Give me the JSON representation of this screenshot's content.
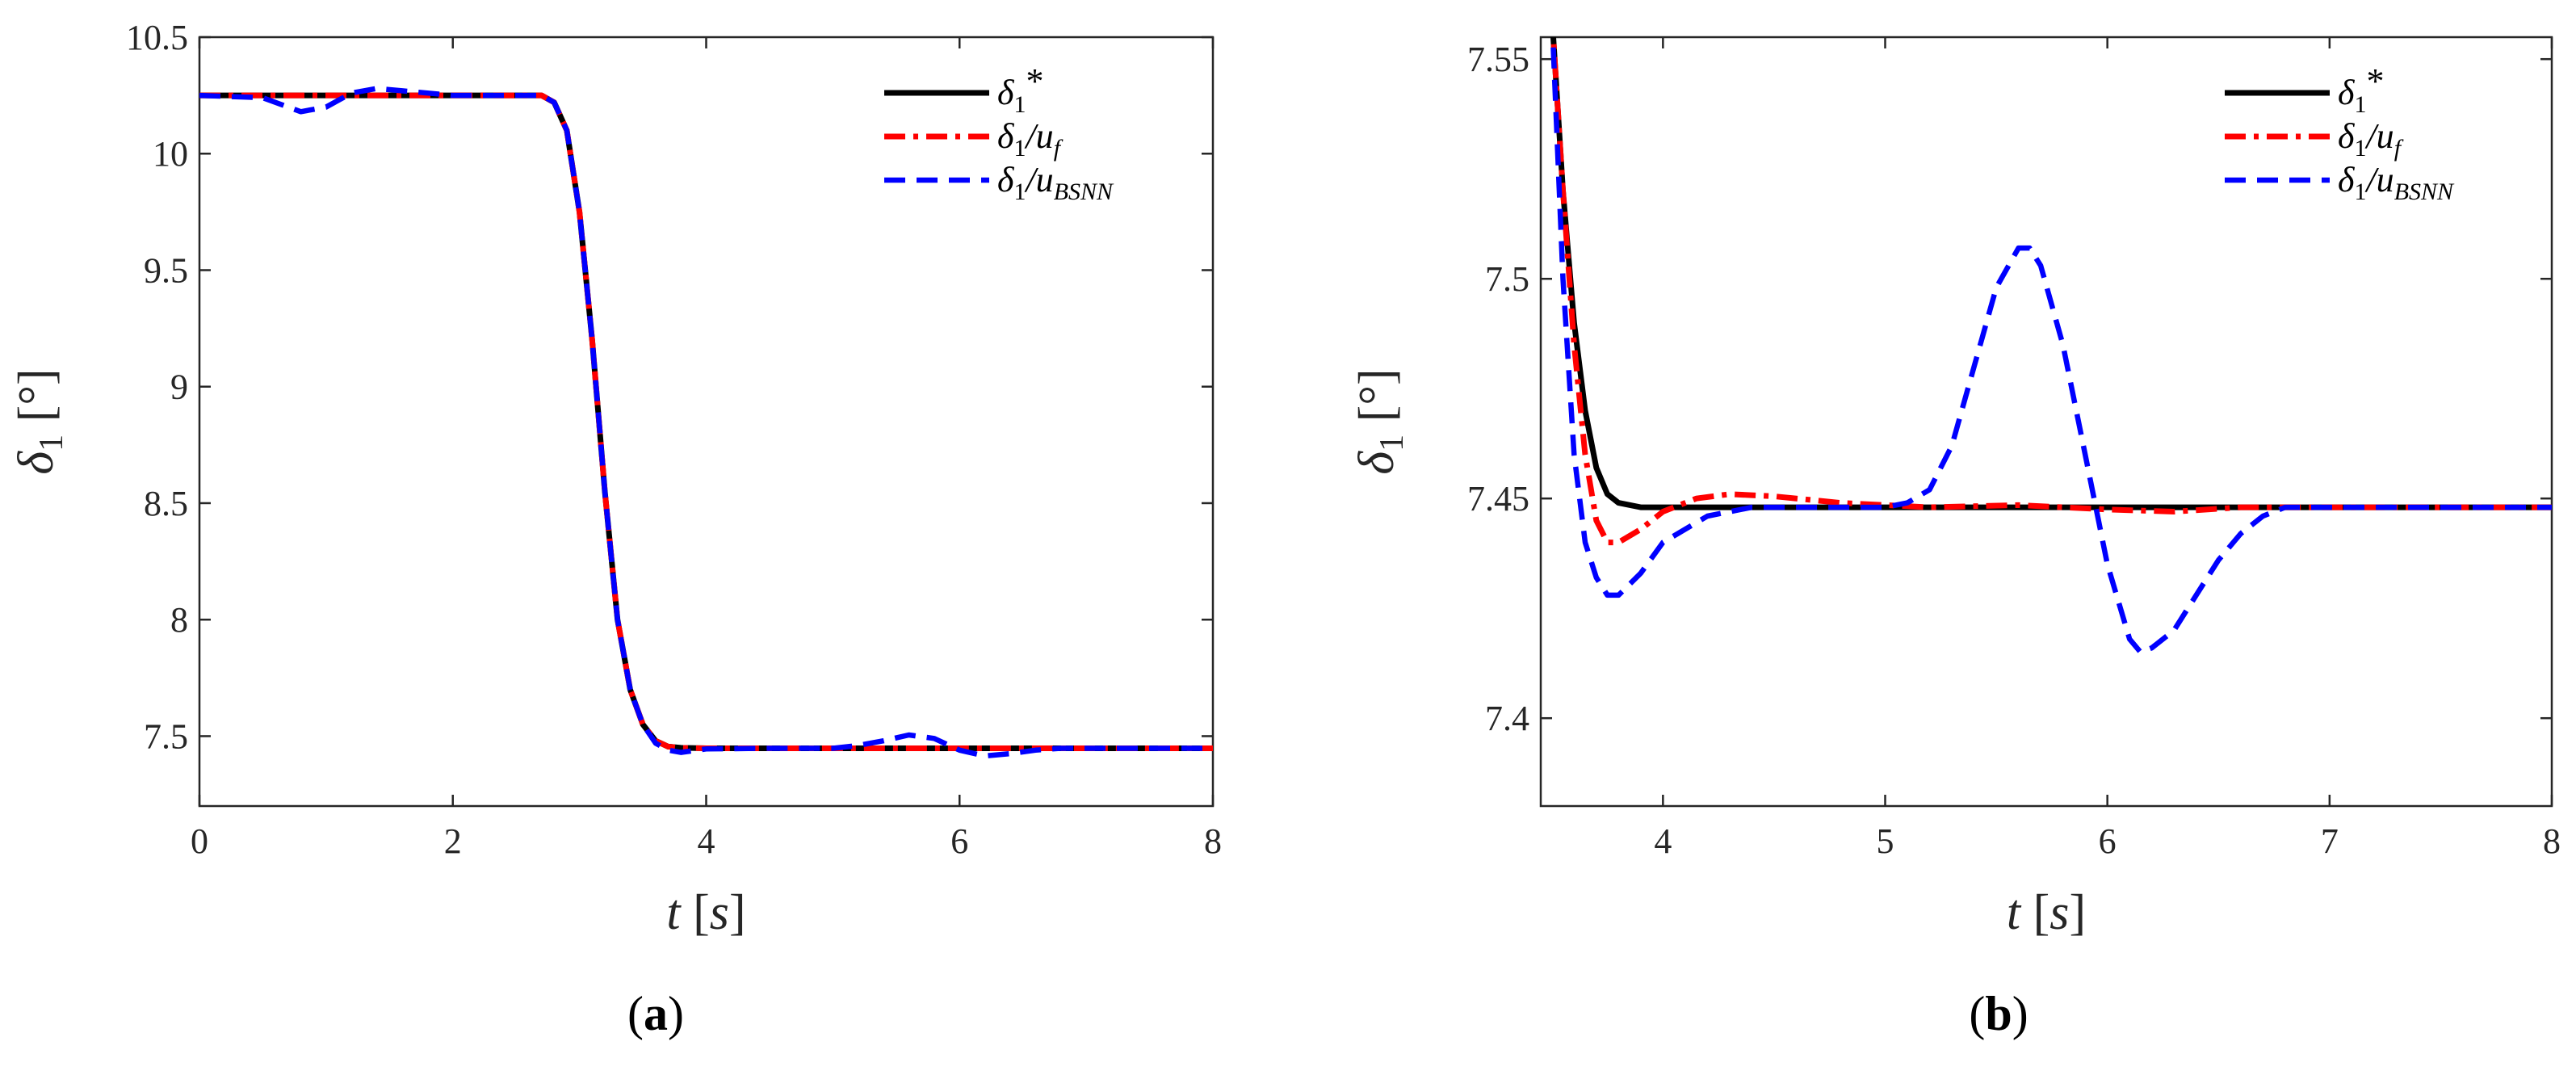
{
  "chart_data": [
    {
      "type": "line",
      "panel_label": "a",
      "xlabel": "t",
      "xunit": "s",
      "ylabel": "δ",
      "ylabel_sub": "1",
      "yunit": "°",
      "xlim": [
        0,
        8
      ],
      "ylim": [
        7.2,
        10.5
      ],
      "xticks": [
        "0",
        "2",
        "4",
        "6",
        "8"
      ],
      "yticks": [
        "7.5",
        "8",
        "8.5",
        "9",
        "9.5",
        "10",
        "10.5"
      ],
      "legend": [
        "δ1*",
        "δ1/uf",
        "δ1/uBSNN"
      ],
      "series": [
        {
          "name": "δ1*",
          "color": "#000000",
          "style": "solid",
          "x": [
            0,
            2.7,
            2.8,
            2.9,
            3.0,
            3.1,
            3.2,
            3.3,
            3.4,
            3.5,
            3.6,
            3.7,
            3.8,
            4.0,
            8
          ],
          "y": [
            10.25,
            10.25,
            10.22,
            10.1,
            9.75,
            9.2,
            8.55,
            8.0,
            7.7,
            7.55,
            7.48,
            7.455,
            7.45,
            7.448,
            7.448
          ]
        },
        {
          "name": "δ1/uf",
          "color": "#ff0000",
          "style": "dashdot",
          "x": [
            0,
            2.7,
            2.8,
            2.9,
            3.0,
            3.1,
            3.2,
            3.3,
            3.4,
            3.5,
            3.6,
            3.7,
            3.8,
            4.0,
            8
          ],
          "y": [
            10.25,
            10.25,
            10.22,
            10.1,
            9.75,
            9.2,
            8.55,
            8.0,
            7.7,
            7.55,
            7.48,
            7.455,
            7.45,
            7.448,
            7.448
          ]
        },
        {
          "name": "δ1/uBSNN",
          "color": "#0000ff",
          "style": "dashed",
          "x": [
            0,
            0.5,
            0.8,
            1.0,
            1.2,
            1.4,
            1.6,
            1.8,
            2.0,
            2.7,
            2.8,
            2.9,
            3.0,
            3.1,
            3.2,
            3.3,
            3.4,
            3.5,
            3.6,
            3.7,
            3.8,
            4.0,
            4.5,
            5.0,
            5.2,
            5.4,
            5.6,
            5.8,
            6.0,
            6.2,
            6.4,
            6.6,
            6.8,
            7.0,
            8
          ],
          "y": [
            10.25,
            10.24,
            10.18,
            10.2,
            10.26,
            10.28,
            10.27,
            10.26,
            10.25,
            10.25,
            10.22,
            10.1,
            9.75,
            9.2,
            8.55,
            8.0,
            7.7,
            7.55,
            7.47,
            7.44,
            7.43,
            7.445,
            7.448,
            7.448,
            7.46,
            7.48,
            7.505,
            7.49,
            7.44,
            7.415,
            7.425,
            7.44,
            7.448,
            7.448,
            7.448
          ]
        }
      ]
    },
    {
      "type": "line",
      "panel_label": "b",
      "xlabel": "t",
      "xunit": "s",
      "ylabel": "δ",
      "ylabel_sub": "1",
      "yunit": "°",
      "xlim": [
        3.45,
        8
      ],
      "ylim": [
        7.38,
        7.555
      ],
      "xticks": [
        "4",
        "5",
        "6",
        "7",
        "8"
      ],
      "yticks": [
        "7.4",
        "7.45",
        "7.5",
        "7.55"
      ],
      "legend": [
        "δ1*",
        "δ1/uf",
        "δ1/uBSNN"
      ],
      "series": [
        {
          "name": "δ1*",
          "color": "#000000",
          "style": "solid",
          "x": [
            3.5,
            3.55,
            3.6,
            3.65,
            3.7,
            3.75,
            3.8,
            3.9,
            4.0,
            5.0,
            6.0,
            7.0,
            8.0
          ],
          "y": [
            7.56,
            7.52,
            7.49,
            7.47,
            7.457,
            7.451,
            7.449,
            7.448,
            7.448,
            7.448,
            7.448,
            7.448,
            7.448
          ]
        },
        {
          "name": "δ1/uf",
          "color": "#ff0000",
          "style": "dashdot",
          "x": [
            3.5,
            3.55,
            3.6,
            3.65,
            3.7,
            3.75,
            3.8,
            3.9,
            4.0,
            4.15,
            4.3,
            4.5,
            4.8,
            5.2,
            5.6,
            6.0,
            6.3,
            6.6,
            7.0,
            8.0
          ],
          "y": [
            7.56,
            7.52,
            7.485,
            7.46,
            7.445,
            7.44,
            7.44,
            7.443,
            7.447,
            7.45,
            7.451,
            7.4505,
            7.449,
            7.448,
            7.4485,
            7.4475,
            7.447,
            7.448,
            7.448,
            7.448
          ]
        },
        {
          "name": "δ1/uBSNN",
          "color": "#0000ff",
          "style": "dashed",
          "x": [
            3.5,
            3.55,
            3.6,
            3.65,
            3.7,
            3.75,
            3.8,
            3.9,
            4.0,
            4.2,
            4.4,
            4.6,
            4.8,
            5.0,
            5.1,
            5.2,
            5.3,
            5.4,
            5.5,
            5.6,
            5.65,
            5.7,
            5.8,
            5.9,
            6.0,
            6.1,
            6.15,
            6.2,
            6.3,
            6.4,
            6.5,
            6.6,
            6.7,
            6.8,
            7.0,
            8.0
          ],
          "y": [
            7.56,
            7.5,
            7.46,
            7.44,
            7.432,
            7.428,
            7.428,
            7.433,
            7.44,
            7.446,
            7.448,
            7.448,
            7.448,
            7.448,
            7.449,
            7.452,
            7.462,
            7.48,
            7.498,
            7.507,
            7.507,
            7.503,
            7.485,
            7.46,
            7.435,
            7.418,
            7.415,
            7.416,
            7.42,
            7.428,
            7.436,
            7.442,
            7.446,
            7.448,
            7.448,
            7.448
          ]
        }
      ]
    }
  ]
}
